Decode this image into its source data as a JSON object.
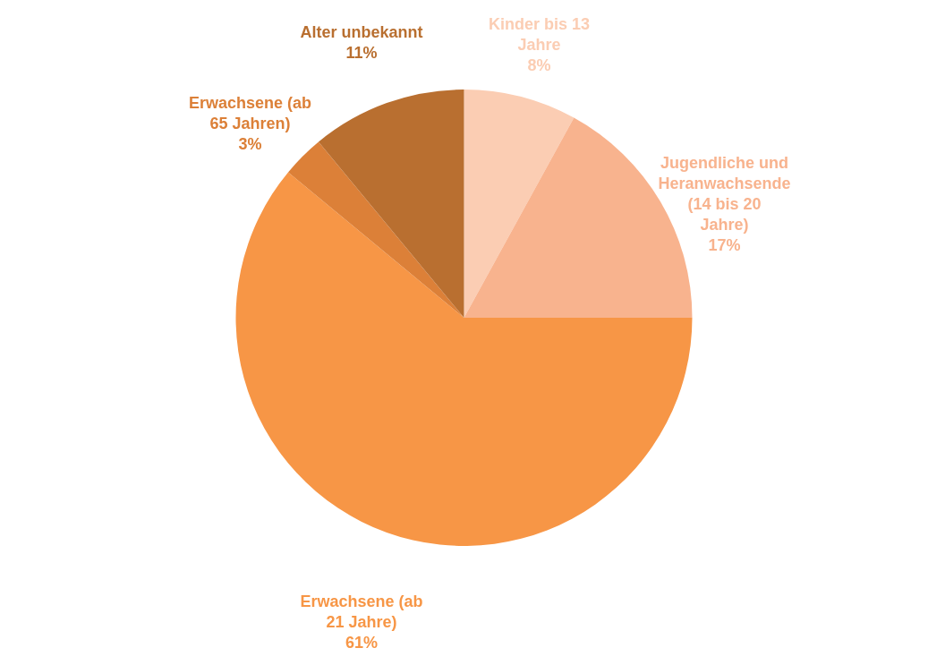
{
  "chart_data": {
    "type": "pie",
    "categories": [
      "Kinder bis 13 Jahre",
      "Jugendliche und Heranwachsende (14 bis 20 Jahre)",
      "Erwachsene (ab 21 Jahre)",
      "Erwachsene (ab 65 Jahren)",
      "Alter unbekannt"
    ],
    "values": [
      8,
      17,
      61,
      3,
      11
    ],
    "value_labels": [
      "8%",
      "17%",
      "61%",
      "3%",
      "11%"
    ],
    "colors": [
      "#fbcdb3",
      "#f8b38e",
      "#f79646",
      "#dc8038",
      "#b96f30"
    ]
  }
}
